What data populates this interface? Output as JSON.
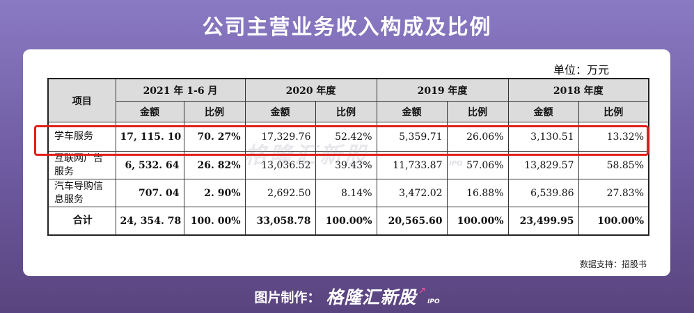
{
  "title": "公司主营业务收入构成及比例",
  "unit_label": "单位：万元",
  "table": {
    "col_item": "项目",
    "periods": [
      "2021 年 1-6 月",
      "2020 年度",
      "2019 年度",
      "2018 年度"
    ],
    "sub_headers": [
      "金额",
      "比例"
    ],
    "rows": [
      {
        "name": "学车服务",
        "cells": [
          "17, 115. 10",
          "70. 27%",
          "17,329.76",
          "52.42%",
          "5,359.71",
          "26.06%",
          "3,130.51",
          "13.32%"
        ]
      },
      {
        "name": "互联网广告服务",
        "cells": [
          "6, 532. 64",
          "26. 82%",
          "13,036.52",
          "39.43%",
          "11,733.87",
          "57.06%",
          "13,829.57",
          "58.85%"
        ]
      },
      {
        "name": "汽车导购信息服务",
        "cells": [
          "707. 04",
          "2. 90%",
          "2,692.50",
          "8.14%",
          "3,472.02",
          "16.88%",
          "6,539.86",
          "27.83%"
        ]
      },
      {
        "name": "合计",
        "cells": [
          "24, 354. 78",
          "100. 00%",
          "33,058.78",
          "100.00%",
          "20,565.60",
          "100.00%",
          "23,499.95",
          "100.00%"
        ]
      }
    ]
  },
  "watermark": {
    "text": "格隆汇新股",
    "sub": "IPO"
  },
  "source": "数据支持：招股书",
  "footer": {
    "label": "图片制作：",
    "brand": "格隆汇新股",
    "brand_sub": "IPO"
  },
  "colors": {
    "highlight": "#e0201a",
    "header_bg": "#dcdcdc",
    "accent": "#ff4da0"
  }
}
